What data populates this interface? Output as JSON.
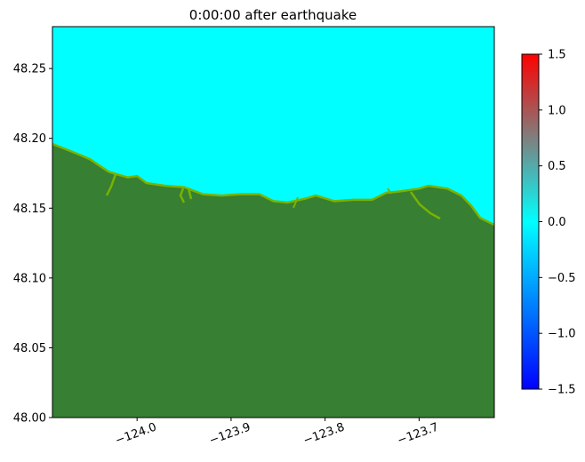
{
  "chart_data": {
    "type": "heatmap",
    "title": "0:00:00 after earthquake",
    "xlabel": "",
    "ylabel": "",
    "xlim": [
      -124.09,
      -123.62
    ],
    "ylim": [
      48.0,
      48.28
    ],
    "x_ticks": [
      {
        "value": -124.0,
        "label": "−124.0"
      },
      {
        "value": -123.9,
        "label": "−123.9"
      },
      {
        "value": -123.8,
        "label": "−123.8"
      },
      {
        "value": -123.7,
        "label": "−123.7"
      }
    ],
    "y_ticks": [
      {
        "value": 48.0,
        "label": "48.00"
      },
      {
        "value": 48.05,
        "label": "48.05"
      },
      {
        "value": 48.1,
        "label": "48.10"
      },
      {
        "value": 48.15,
        "label": "48.15"
      },
      {
        "value": 48.2,
        "label": "48.20"
      },
      {
        "value": 48.25,
        "label": "48.25"
      }
    ],
    "colorbar": {
      "range": [
        -1.5,
        1.5
      ],
      "ticks": [
        {
          "value": 1.5,
          "label": "1.5"
        },
        {
          "value": 1.0,
          "label": "1.0"
        },
        {
          "value": 0.5,
          "label": "0.5"
        },
        {
          "value": 0.0,
          "label": "0.0"
        },
        {
          "value": -0.5,
          "label": "−0.5"
        },
        {
          "value": -1.0,
          "label": "−1.0"
        },
        {
          "value": -1.5,
          "label": "−1.5"
        }
      ],
      "colors": [
        "#0000ff",
        "#00ffff",
        "#ff0000"
      ]
    },
    "water_value": 0.0,
    "colors": {
      "water": "#00ffff",
      "land": "#367f33",
      "shore": "#7ab200"
    },
    "coastline": [
      [
        -124.09,
        48.196
      ],
      [
        -124.06,
        48.188
      ],
      [
        -124.05,
        48.185
      ],
      [
        -124.03,
        48.176
      ],
      [
        -124.01,
        48.172
      ],
      [
        -124.0,
        48.173
      ],
      [
        -123.99,
        48.168
      ],
      [
        -123.97,
        48.166
      ],
      [
        -123.95,
        48.165
      ],
      [
        -123.93,
        48.16
      ],
      [
        -123.91,
        48.159
      ],
      [
        -123.89,
        48.16
      ],
      [
        -123.87,
        48.16
      ],
      [
        -123.855,
        48.155
      ],
      [
        -123.84,
        48.154
      ],
      [
        -123.82,
        48.157
      ],
      [
        -123.81,
        48.159
      ],
      [
        -123.79,
        48.155
      ],
      [
        -123.77,
        48.156
      ],
      [
        -123.75,
        48.156
      ],
      [
        -123.735,
        48.161
      ],
      [
        -123.72,
        48.162
      ],
      [
        -123.7,
        48.164
      ],
      [
        -123.69,
        48.166
      ],
      [
        -123.67,
        48.164
      ],
      [
        -123.655,
        48.159
      ],
      [
        -123.645,
        48.152
      ],
      [
        -123.635,
        48.143
      ],
      [
        -123.62,
        48.138
      ]
    ]
  }
}
